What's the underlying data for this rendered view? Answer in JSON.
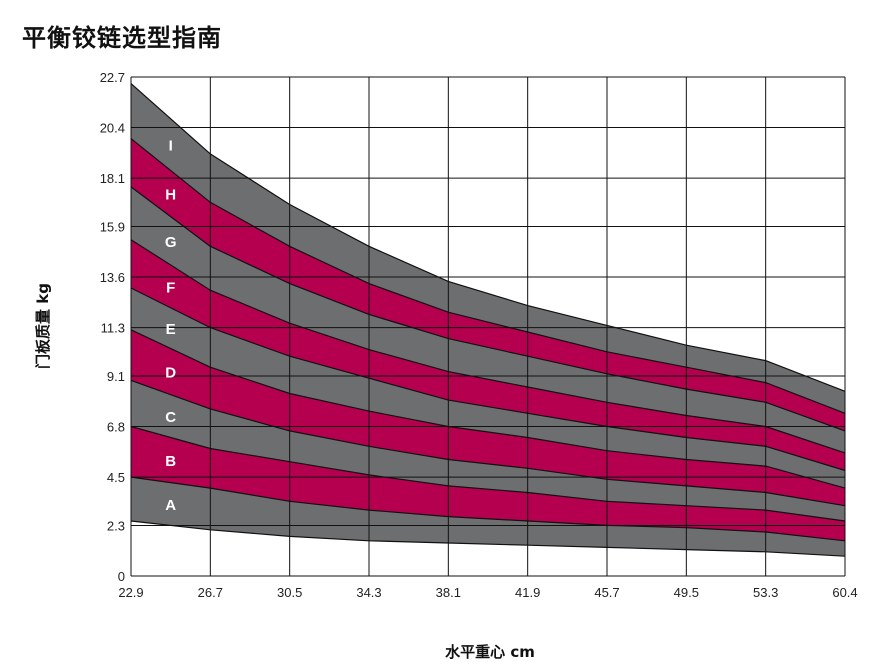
{
  "title": "平衡铰链选型指南",
  "chart_data": {
    "type": "area",
    "title": "平衡铰链选型指南",
    "xlabel": "水平重心 cm",
    "ylabel": "门板质量 kg",
    "xlim": [
      22.9,
      60.4
    ],
    "ylim": [
      0,
      22.7
    ],
    "x_ticks": [
      "22.9",
      "26.7",
      "30.5",
      "34.3",
      "38.1",
      "41.9",
      "45.7",
      "49.5",
      "53.3",
      "60.4"
    ],
    "y_ticks": [
      "0",
      "2.3",
      "4.5",
      "6.8",
      "9.1",
      "11.3",
      "13.6",
      "15.9",
      "18.1",
      "20.4",
      "22.7"
    ],
    "grid": true,
    "colors": {
      "gray": "#6d6e70",
      "red": "#b5004f",
      "grid": "#111111"
    },
    "x": [
      22.9,
      26.7,
      30.5,
      34.3,
      38.1,
      41.9,
      45.7,
      49.5,
      53.3,
      60.4
    ],
    "boundaries": [
      [
        2.5,
        2.1,
        1.8,
        1.6,
        1.5,
        1.4,
        1.3,
        1.2,
        1.1,
        0.9
      ],
      [
        4.5,
        4.0,
        3.4,
        3.0,
        2.7,
        2.5,
        2.3,
        2.2,
        2.0,
        1.6
      ],
      [
        6.8,
        5.8,
        5.2,
        4.6,
        4.1,
        3.8,
        3.4,
        3.2,
        3.0,
        2.5
      ],
      [
        8.9,
        7.6,
        6.6,
        5.9,
        5.3,
        4.9,
        4.4,
        4.1,
        3.8,
        3.2
      ],
      [
        11.2,
        9.5,
        8.3,
        7.5,
        6.8,
        6.3,
        5.7,
        5.3,
        5.0,
        4.0
      ],
      [
        13.1,
        11.3,
        10.0,
        9.0,
        8.0,
        7.4,
        6.8,
        6.3,
        5.9,
        4.8
      ],
      [
        15.3,
        13.0,
        11.5,
        10.3,
        9.3,
        8.6,
        7.9,
        7.3,
        6.8,
        5.6
      ],
      [
        17.7,
        15.0,
        13.3,
        11.9,
        10.8,
        10.0,
        9.2,
        8.5,
        7.9,
        6.6
      ],
      [
        19.9,
        17.0,
        15.0,
        13.3,
        12.0,
        11.1,
        10.2,
        9.5,
        8.8,
        7.4
      ],
      [
        22.4,
        19.2,
        16.9,
        15.0,
        13.4,
        12.3,
        11.4,
        10.5,
        9.8,
        8.4
      ]
    ],
    "bands": [
      {
        "label": "A",
        "color": "gray"
      },
      {
        "label": "B",
        "color": "red"
      },
      {
        "label": "C",
        "color": "gray"
      },
      {
        "label": "D",
        "color": "red"
      },
      {
        "label": "E",
        "color": "gray"
      },
      {
        "label": "F",
        "color": "red"
      },
      {
        "label": "G",
        "color": "gray"
      },
      {
        "label": "H",
        "color": "red"
      },
      {
        "label": "I",
        "color": "gray"
      }
    ]
  }
}
